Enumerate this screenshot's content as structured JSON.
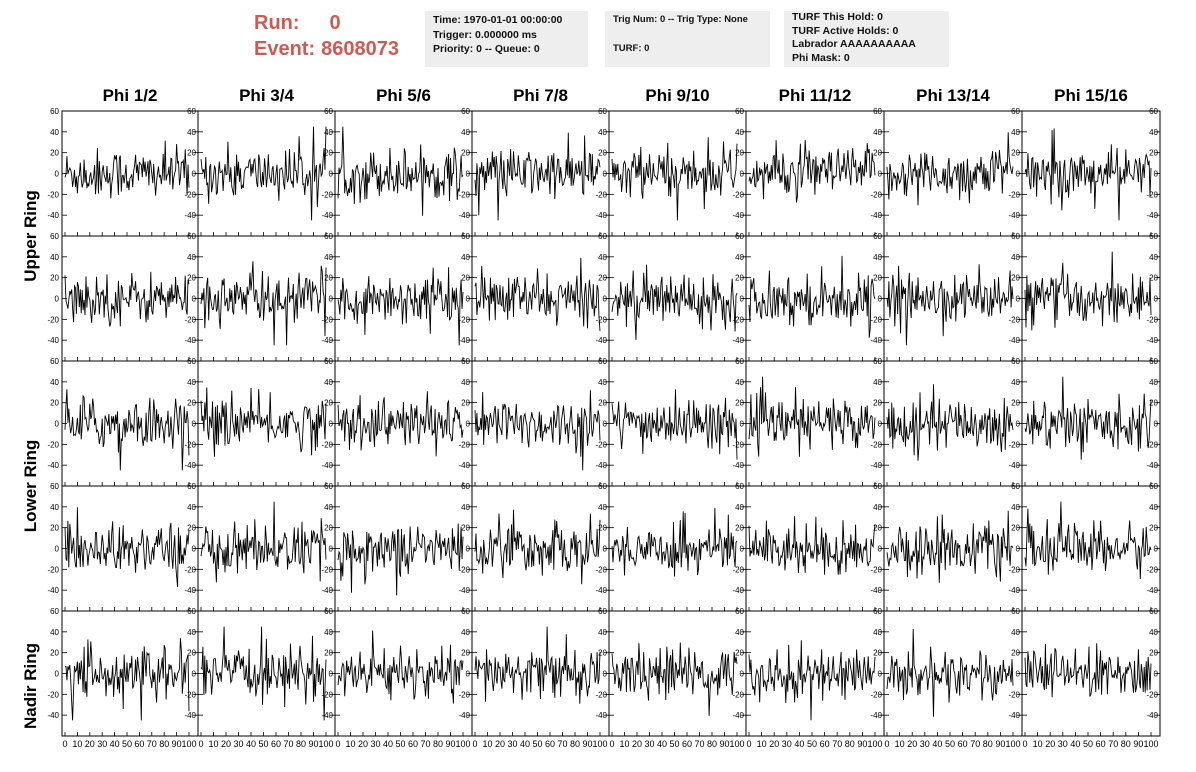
{
  "header": {
    "run_label": "Run:",
    "run_value": "0",
    "event_label": "Event:",
    "event_value": "8608073",
    "accent_color": "#d05a52"
  },
  "info_boxes": {
    "time": {
      "line1": "Time: 1970-01-01 00:00:00",
      "line2": "Trigger: 0.000000 ms",
      "line3": "Priority: 0 -- Queue: 0"
    },
    "trig": {
      "line1": "Trig Num: 0 -- Trig Type: None",
      "line2": "",
      "line3": "TURF: 0"
    },
    "turf": {
      "line1": "TURF This Hold: 0",
      "line2": "TURF Active Holds: 0",
      "line3": "Labrador AAAAAAAAAA",
      "line4": "Phi Mask: 0"
    }
  },
  "columns": [
    "Phi 1/2",
    "Phi 3/4",
    "Phi 5/6",
    "Phi 7/8",
    "Phi 9/10",
    "Phi 11/12",
    "Phi 13/14",
    "Phi 15/16"
  ],
  "rings": [
    {
      "label": "Upper Ring"
    },
    {
      "label": "Lower Ring"
    },
    {
      "label": "Nadir Ring"
    }
  ],
  "axes": {
    "y_ticks": [
      "60",
      "40",
      "20",
      "0",
      "-20",
      "-40"
    ],
    "x_ticks": [
      "0",
      "10",
      "20",
      "30",
      "40",
      "50",
      "60",
      "70",
      "80",
      "90",
      "100"
    ]
  },
  "chart_data": {
    "type": "line",
    "title": "",
    "xlabel": "",
    "ylabel": "",
    "xlim": [
      0,
      100
    ],
    "ylim": [
      -60,
      60
    ],
    "rows": 5,
    "cols": 8,
    "grid": false,
    "series_color": "#000000",
    "description_of_values": "Each of the 40 panels shows a noise waveform oscillating around 0 with typical amplitude about 20 and occasional peaks near 40"
  }
}
